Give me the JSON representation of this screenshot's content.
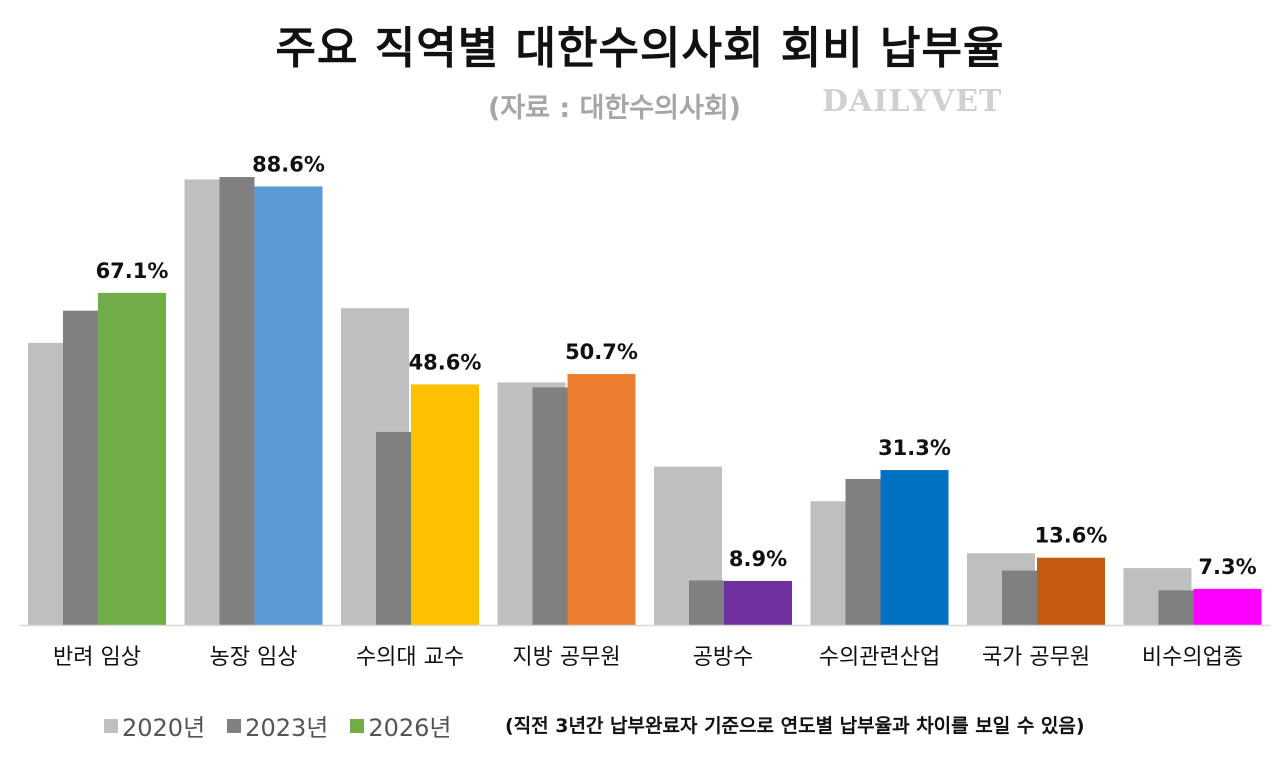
{
  "header": {
    "title": "주요 직역별 대한수의사회 회비 납부율",
    "source": "(자료 : 대한수의사회)",
    "brand": "DAILYVET"
  },
  "chart_data": {
    "type": "bar",
    "title": "주요 직역별 대한수의사회 회비 납부율",
    "categories": [
      "반려 임상",
      "농장 임상",
      "수의대 교수",
      "지방 공무원",
      "공방수",
      "수의관련산업",
      "국가 공무원",
      "비수의업종"
    ],
    "series": [
      {
        "name": "2020년",
        "color": "#bfbfbf",
        "values": [
          57.0,
          90.0,
          64.0,
          49.0,
          32.0,
          25.0,
          14.5,
          11.5
        ]
      },
      {
        "name": "2023년",
        "color": "#808080",
        "values": [
          63.5,
          90.5,
          39.0,
          48.0,
          9.0,
          29.5,
          11.0,
          7.0
        ]
      },
      {
        "name": "2026년",
        "colors": [
          "#70ad47",
          "#5b9bd5",
          "#ffc000",
          "#ed7d31",
          "#7030a0",
          "#0070c0",
          "#c55a11",
          "#ff00ff"
        ],
        "values": [
          67.1,
          88.6,
          48.6,
          50.7,
          8.9,
          31.3,
          13.6,
          7.3
        ],
        "labels": [
          "67.1%",
          "88.6%",
          "48.6%",
          "50.7%",
          "8.9%",
          "31.3%",
          "13.6%",
          "7.3%"
        ]
      }
    ],
    "ylim": [
      0,
      100
    ],
    "grid": false,
    "legend_position": "bottom-left"
  },
  "legend": {
    "items": [
      {
        "label": "2020년",
        "color": "#bfbfbf"
      },
      {
        "label": "2023년",
        "color": "#808080"
      },
      {
        "label": "2026년",
        "color": "#70ad47"
      }
    ],
    "note": "(직전 3년간 납부완료자 기준으로 연도별 납부율과 차이를 보일 수 있음)"
  }
}
